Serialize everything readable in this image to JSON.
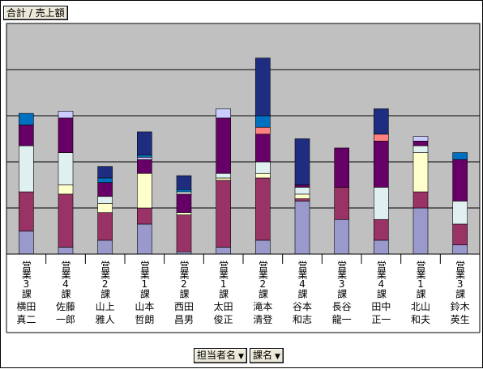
{
  "field_button_label": "合計 / 売上額",
  "filters": [
    {
      "label": "担当者名"
    },
    {
      "label": "課名"
    }
  ],
  "colors": {
    "plot_bg": "#c0c0c0",
    "segments": [
      "#9999cc",
      "#993366",
      "#e0f0f0",
      "#ffffcc",
      "#660066",
      "#ff8080",
      "#0070c0",
      "#ccccff",
      "#1f2d80"
    ]
  },
  "chart_data": {
    "type": "bar",
    "stacked": true,
    "title": "",
    "xlabel": "",
    "ylabel": "",
    "grid": true,
    "gridlines": 5,
    "legend": "none",
    "ylim": [
      0,
      100
    ],
    "categories": [
      {
        "dept": "営業3課",
        "name1": "横田",
        "name2": "真二"
      },
      {
        "dept": "営業4課",
        "name1": "佐藤",
        "name2": "一郎"
      },
      {
        "dept": "営業2課",
        "name1": "山上",
        "name2": "雅人"
      },
      {
        "dept": "営業1課",
        "name1": "山本",
        "name2": "哲朗"
      },
      {
        "dept": "営業2課",
        "name1": "西田",
        "name2": "昌男"
      },
      {
        "dept": "営業1課",
        "name1": "太田",
        "name2": "俊正"
      },
      {
        "dept": "営業2課",
        "name1": "滝本",
        "name2": "清登"
      },
      {
        "dept": "営業4課",
        "name1": "谷本",
        "name2": "和志"
      },
      {
        "dept": "営業3課",
        "name1": "長谷",
        "name2": "龍一"
      },
      {
        "dept": "営業4課",
        "name1": "田中",
        "name2": "正一"
      },
      {
        "dept": "営業1課",
        "name1": "北山",
        "name2": "和夫"
      },
      {
        "dept": "営業3課",
        "name1": "鈴木",
        "name2": "英生"
      }
    ],
    "stacks": [
      [
        [
          0,
          10
        ],
        [
          1,
          17
        ],
        [
          2,
          20
        ],
        [
          4,
          9
        ],
        [
          6,
          5
        ]
      ],
      [
        [
          0,
          3
        ],
        [
          1,
          23
        ],
        [
          3,
          4
        ],
        [
          2,
          14
        ],
        [
          4,
          15
        ],
        [
          7,
          3
        ]
      ],
      [
        [
          0,
          6
        ],
        [
          1,
          12
        ],
        [
          3,
          4
        ],
        [
          2,
          3
        ],
        [
          4,
          6
        ],
        [
          6,
          2
        ],
        [
          8,
          5
        ]
      ],
      [
        [
          0,
          13
        ],
        [
          1,
          7
        ],
        [
          3,
          15
        ],
        [
          4,
          6
        ],
        [
          7,
          1
        ],
        [
          6,
          1
        ],
        [
          8,
          10
        ]
      ],
      [
        [
          0,
          1
        ],
        [
          1,
          16
        ],
        [
          3,
          1
        ],
        [
          4,
          8
        ],
        [
          2,
          1
        ],
        [
          6,
          1
        ],
        [
          8,
          6
        ]
      ],
      [
        [
          0,
          3
        ],
        [
          1,
          29
        ],
        [
          3,
          1
        ],
        [
          2,
          2
        ],
        [
          4,
          24
        ],
        [
          7,
          4
        ]
      ],
      [
        [
          0,
          6
        ],
        [
          1,
          27
        ],
        [
          3,
          2
        ],
        [
          2,
          5
        ],
        [
          4,
          12
        ],
        [
          5,
          3
        ],
        [
          6,
          5
        ],
        [
          8,
          25
        ]
      ],
      [
        [
          0,
          23
        ],
        [
          1,
          1
        ],
        [
          3,
          2
        ],
        [
          2,
          3
        ],
        [
          4,
          1
        ],
        [
          8,
          20
        ]
      ],
      [
        [
          0,
          15
        ],
        [
          1,
          14
        ],
        [
          4,
          17
        ]
      ],
      [
        [
          0,
          6
        ],
        [
          1,
          9
        ],
        [
          2,
          14
        ],
        [
          4,
          20
        ],
        [
          5,
          3
        ],
        [
          8,
          11
        ]
      ],
      [
        [
          0,
          20
        ],
        [
          1,
          7
        ],
        [
          3,
          17
        ],
        [
          2,
          3
        ],
        [
          4,
          2
        ],
        [
          7,
          2
        ]
      ],
      [
        [
          0,
          4
        ],
        [
          1,
          9
        ],
        [
          2,
          10
        ],
        [
          4,
          18
        ],
        [
          6,
          3
        ]
      ]
    ]
  }
}
